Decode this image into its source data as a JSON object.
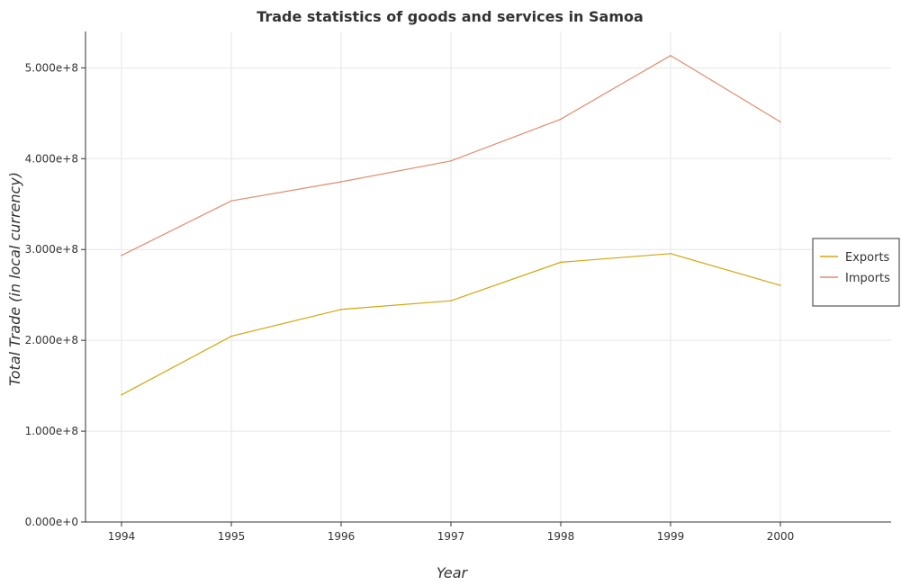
{
  "chart_data": {
    "type": "line",
    "title": "Trade statistics of goods and services in Samoa",
    "xlabel": "Year",
    "ylabel": "Total Trade (in local currency)",
    "categories": [
      "1994",
      "1995",
      "1996",
      "1997",
      "1998",
      "1999",
      "2000"
    ],
    "ylim": [
      0,
      540000000
    ],
    "yticks": [
      0,
      100000000,
      200000000,
      300000000,
      400000000,
      500000000
    ],
    "ytick_labels": [
      "0.000e+0",
      "1.000e+8",
      "2.000e+8",
      "3.000e+8",
      "4.000e+8",
      "5.000e+8"
    ],
    "grid": true,
    "legend_position": "right",
    "series": [
      {
        "name": "Exports",
        "color": "#d4a50a",
        "values": [
          140000000,
          204500000,
          234000000,
          243500000,
          286000000,
          295500000,
          260500000
        ]
      },
      {
        "name": "Imports",
        "color": "#e08c6e",
        "values": [
          293500000,
          353500000,
          374500000,
          397500000,
          443500000,
          513500000,
          440500000
        ]
      }
    ]
  }
}
